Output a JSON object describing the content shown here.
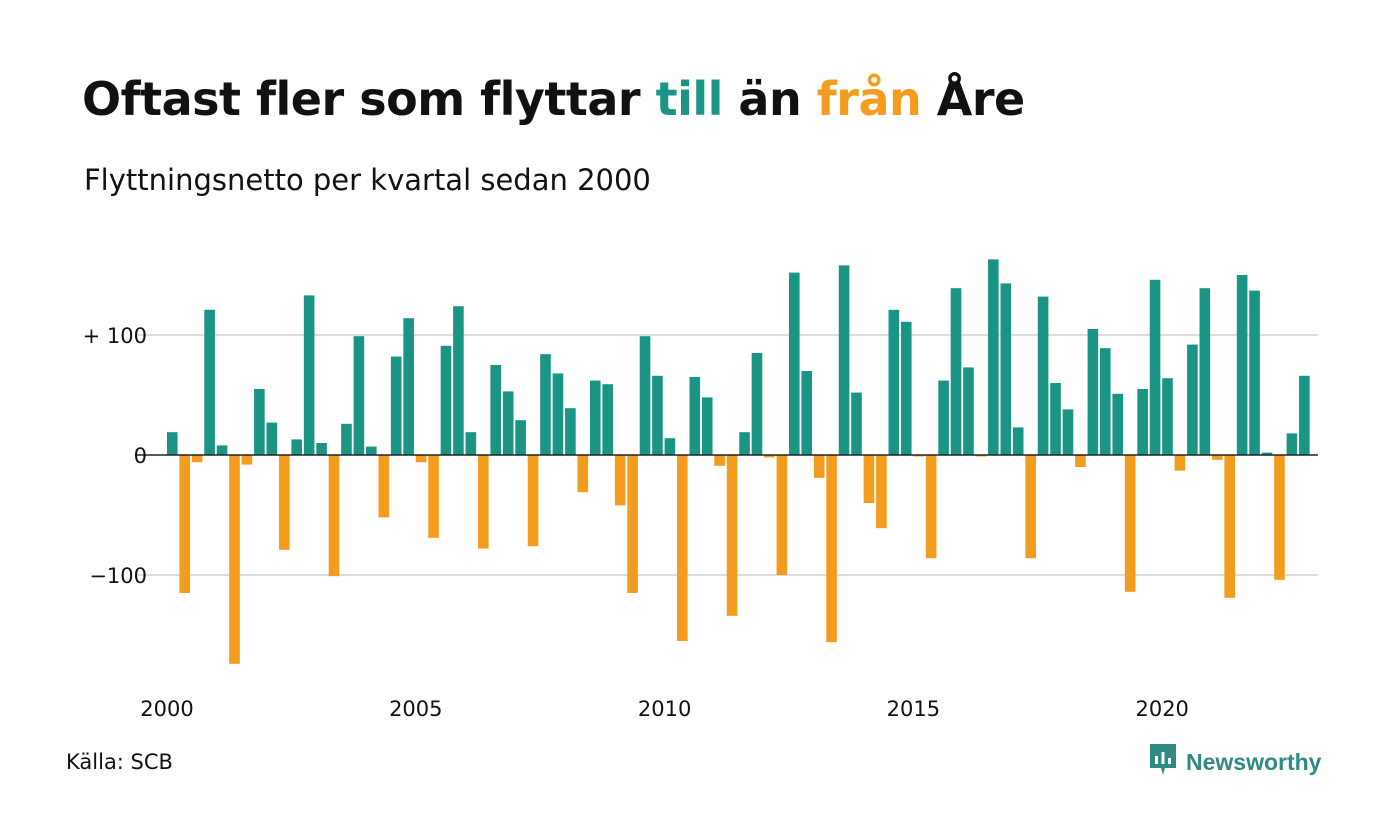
{
  "title": {
    "part1": "Oftast fler som flyttar ",
    "till": "till",
    "part2": " än ",
    "fran": "från",
    "part3": " Åre"
  },
  "subtitle": "Flyttningsnetto per kvartal sedan 2000",
  "source": "Källa: SCB",
  "brand": {
    "name": "Newsworthy",
    "icon": "newsworthy-logo-icon"
  },
  "colors": {
    "positive": "#1a9485",
    "negative": "#f39c1e",
    "grid": "#dddddd",
    "zero": "#222222",
    "title_till": "#1a9485",
    "title_fran": "#f39c1e"
  },
  "chart_data": {
    "type": "bar",
    "start_year": 2000,
    "frequency": "quarterly",
    "values": [
      19,
      -115,
      -6,
      121,
      8,
      -174,
      -8,
      55,
      27,
      -79,
      13,
      133,
      10,
      -101,
      26,
      99,
      7,
      -52,
      82,
      114,
      -6,
      -69,
      91,
      124,
      19,
      -78,
      75,
      53,
      29,
      -76,
      84,
      68,
      39,
      -31,
      62,
      59,
      -42,
      -115,
      99,
      66,
      14,
      -155,
      65,
      48,
      -9,
      -134,
      19,
      85,
      -2,
      -100,
      152,
      70,
      -19,
      -156,
      158,
      52,
      -40,
      -61,
      121,
      111,
      -1,
      -86,
      62,
      139,
      73,
      -1,
      163,
      143,
      23,
      -86,
      132,
      60,
      38,
      -10,
      105,
      89,
      51,
      -114,
      55,
      146,
      64,
      -13,
      92,
      139,
      -4,
      -119,
      150,
      137,
      2,
      -104,
      18,
      66
    ],
    "x_ticks": [
      "2000",
      "2005",
      "2010",
      "2015",
      "2020"
    ],
    "y_ticks": [
      {
        "value": 100,
        "label": "+ 100"
      },
      {
        "value": 0,
        "label": "0"
      },
      {
        "value": -100,
        "label": "−100"
      }
    ],
    "ylim": [
      -180,
      170
    ],
    "grid": true
  }
}
